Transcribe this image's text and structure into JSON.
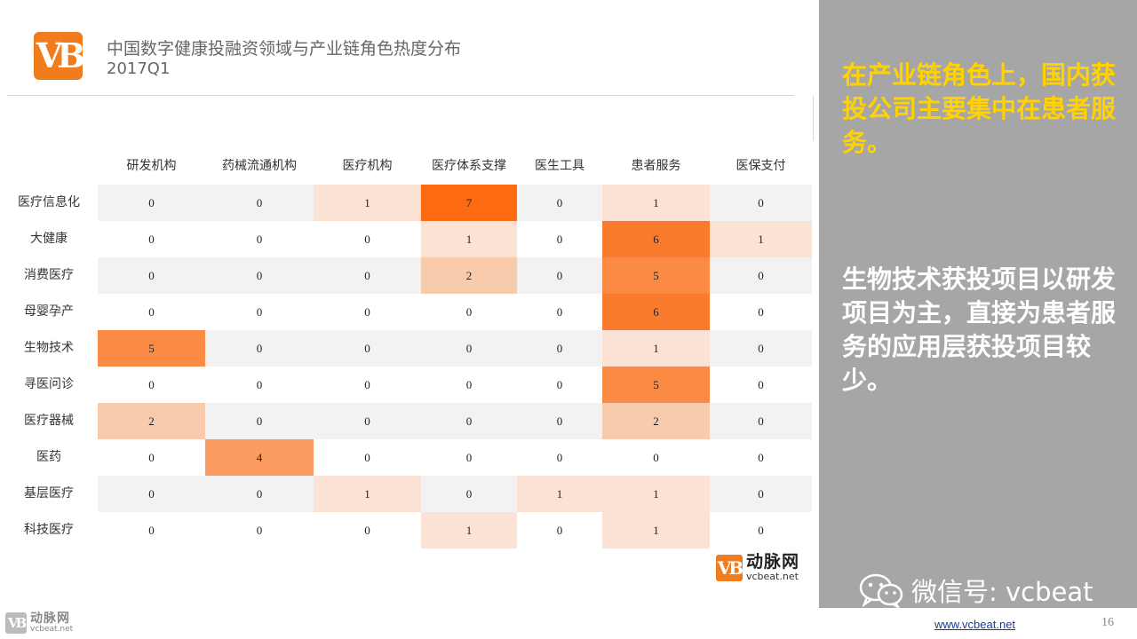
{
  "header": {
    "title": "中国数字健康投融资领域与产业链角色热度分布",
    "subtitle": "2017Q1",
    "logo_text": "VB"
  },
  "chart_data": {
    "type": "heatmap",
    "title": "中国数字健康投融资领域与产业链角色热度分布",
    "columns": [
      "研发机构",
      "药械流通机构",
      "医疗机构",
      "医疗体系支撑",
      "医生工具",
      "患者服务",
      "医保支付"
    ],
    "rows": [
      "医疗信息化",
      "大健康",
      "消费医疗",
      "母婴孕产",
      "生物技术",
      "寻医问诊",
      "医疗器械",
      "医药",
      "基层医疗",
      "科技医疗"
    ],
    "values": [
      [
        0,
        0,
        1,
        7,
        0,
        1,
        0
      ],
      [
        0,
        0,
        0,
        1,
        0,
        6,
        1
      ],
      [
        0,
        0,
        0,
        2,
        0,
        5,
        0
      ],
      [
        0,
        0,
        0,
        0,
        0,
        6,
        0
      ],
      [
        5,
        0,
        0,
        0,
        0,
        1,
        0
      ],
      [
        0,
        0,
        0,
        0,
        0,
        5,
        0
      ],
      [
        2,
        0,
        0,
        0,
        0,
        2,
        0
      ],
      [
        0,
        4,
        0,
        0,
        0,
        0,
        0
      ],
      [
        0,
        0,
        1,
        0,
        1,
        1,
        0
      ],
      [
        0,
        0,
        0,
        1,
        0,
        1,
        0
      ]
    ],
    "colors": {
      "zero_row_a": "#f2f2f2",
      "zero_row_b": "#ffffff",
      "1": "#fbe2d5",
      "2": "#f8cbad",
      "4": "#fa9b5f",
      "5": "#fb8a44",
      "6": "#fb7b2e",
      "7": "#fc6a12"
    }
  },
  "brand": {
    "cn": "动脉网",
    "en": "vcbeat.net",
    "badge": "VB"
  },
  "side": {
    "highlight": "在产业链角色上，国内获投公司主要集中在患者服务。",
    "note": "生物技术获投项目以研发项目为主，直接为患者服务的应用层获投项目较少。",
    "wechat": "微信号: vcbeat"
  },
  "footer": {
    "url": "www.vcbeat.net",
    "page": "16"
  }
}
